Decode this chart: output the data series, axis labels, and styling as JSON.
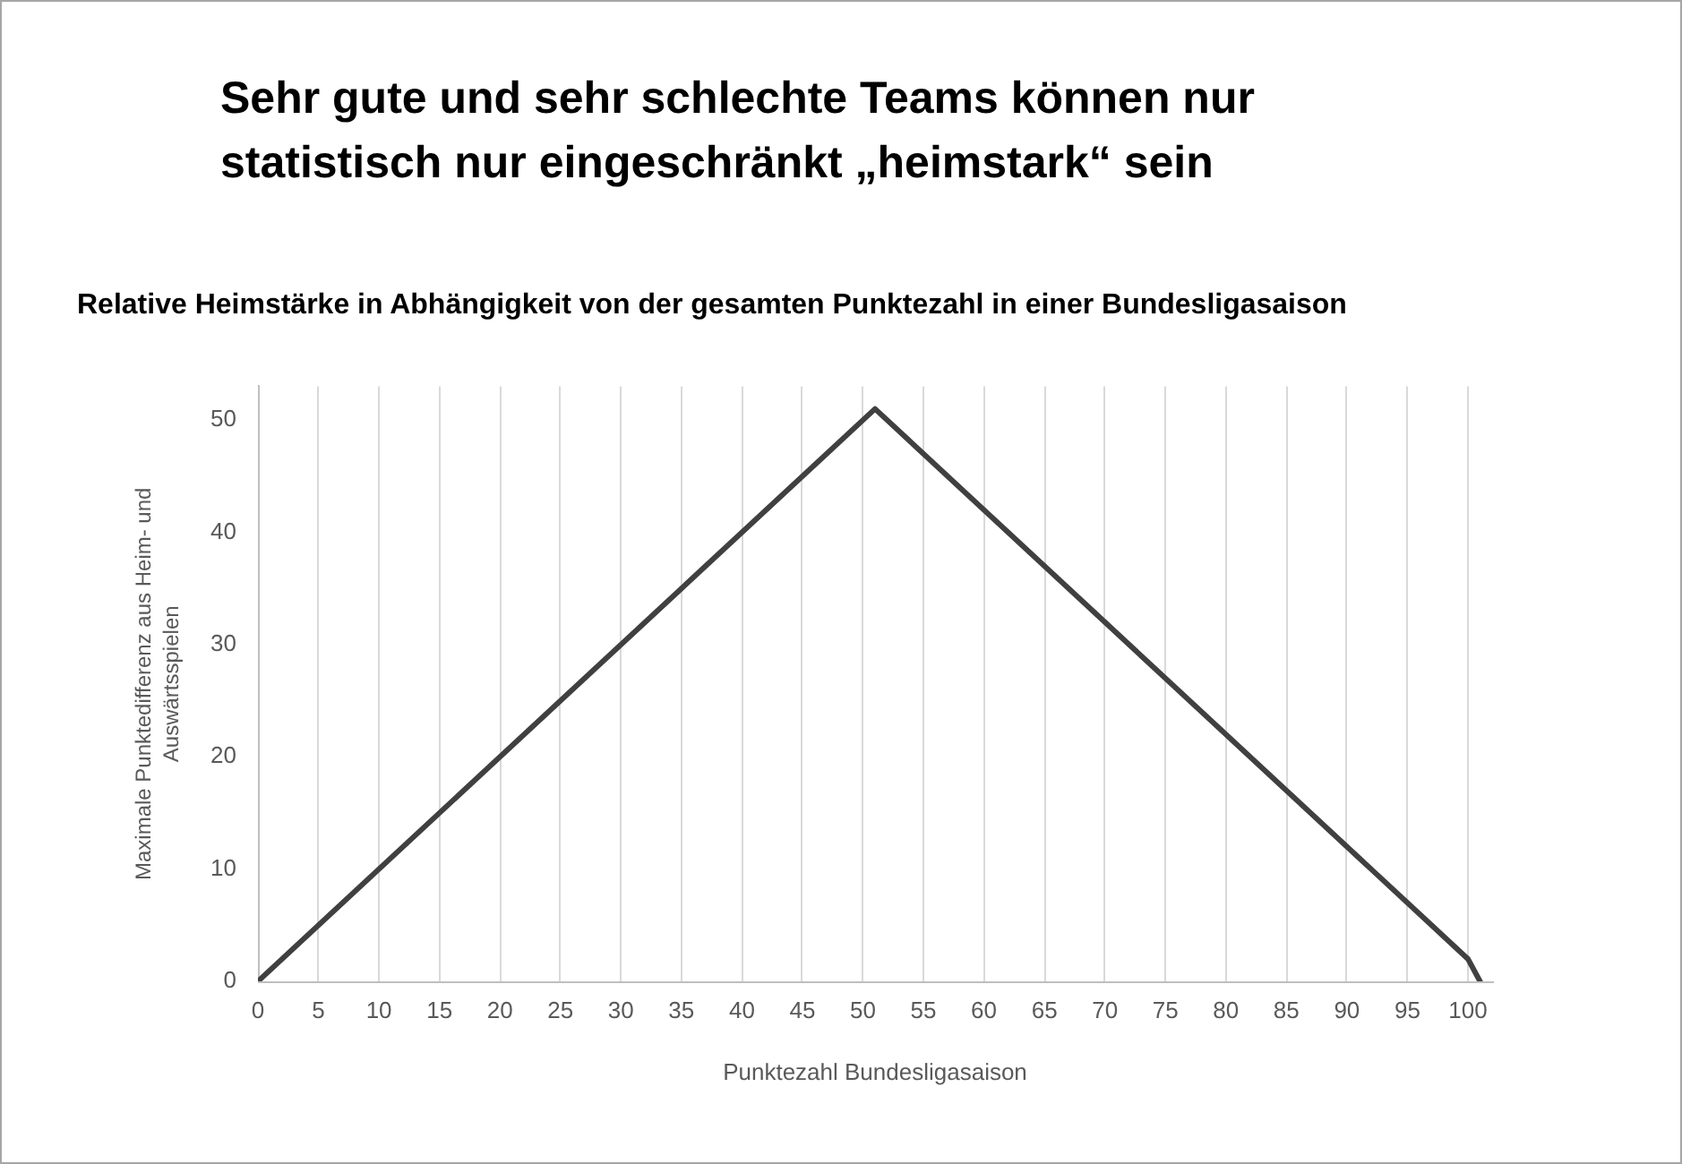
{
  "chart_data": {
    "type": "line",
    "title": "Sehr gute und sehr schlechte Teams können nur statistisch nur eingeschränkt „heimstark“ sein",
    "subtitle": "Relative Heimstärke in Abhängigkeit von der gesamten Punktezahl in einer Bundesligasaison",
    "xlabel": "Punktezahl Bundesligasaison",
    "ylabel": "Maximale Punktedifferenz aus Heim- und Auswärtsspielen",
    "x": [
      0,
      51,
      100,
      101
    ],
    "values": [
      0,
      51,
      2,
      0
    ],
    "color": "#404040",
    "xlim": [
      0,
      102
    ],
    "ylim": [
      0,
      53
    ],
    "xticks": [
      0,
      5,
      10,
      15,
      20,
      25,
      30,
      35,
      40,
      45,
      50,
      55,
      60,
      65,
      70,
      75,
      80,
      85,
      90,
      95,
      100
    ],
    "yticks": [
      0,
      10,
      20,
      30,
      40,
      50
    ],
    "grid": "x"
  }
}
